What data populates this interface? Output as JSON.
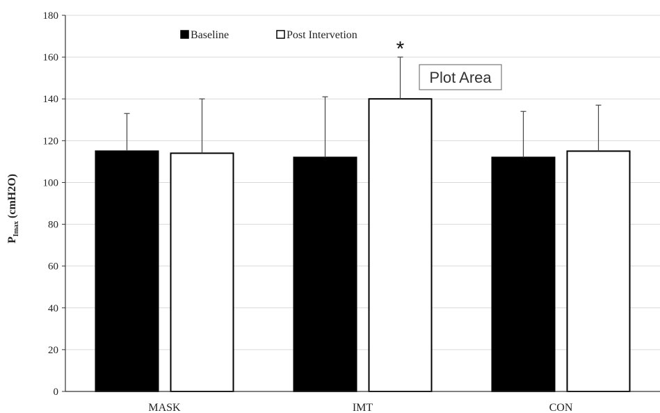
{
  "chart_data": {
    "type": "bar",
    "categories": [
      "MASK",
      "IMT",
      "CON"
    ],
    "series": [
      {
        "name": "Baseline",
        "color": "#000000",
        "values": [
          115,
          112,
          112
        ],
        "error": [
          18,
          29,
          22
        ]
      },
      {
        "name": "Post Intervetion",
        "color": "#ffffff",
        "values": [
          114,
          140,
          115
        ],
        "error": [
          26,
          20,
          22
        ]
      }
    ],
    "ylabel": {
      "main": "P",
      "sub": "Imax",
      "rest": " (cmH2O)"
    },
    "ylim": [
      0,
      180
    ],
    "yticks": [
      0,
      20,
      40,
      60,
      80,
      100,
      120,
      140,
      160,
      180
    ],
    "grid": true,
    "legend_position": "top-left",
    "annotation": {
      "text": "*",
      "category": "IMT",
      "series": "Post Intervetion"
    },
    "tooltip": "Plot Area"
  }
}
